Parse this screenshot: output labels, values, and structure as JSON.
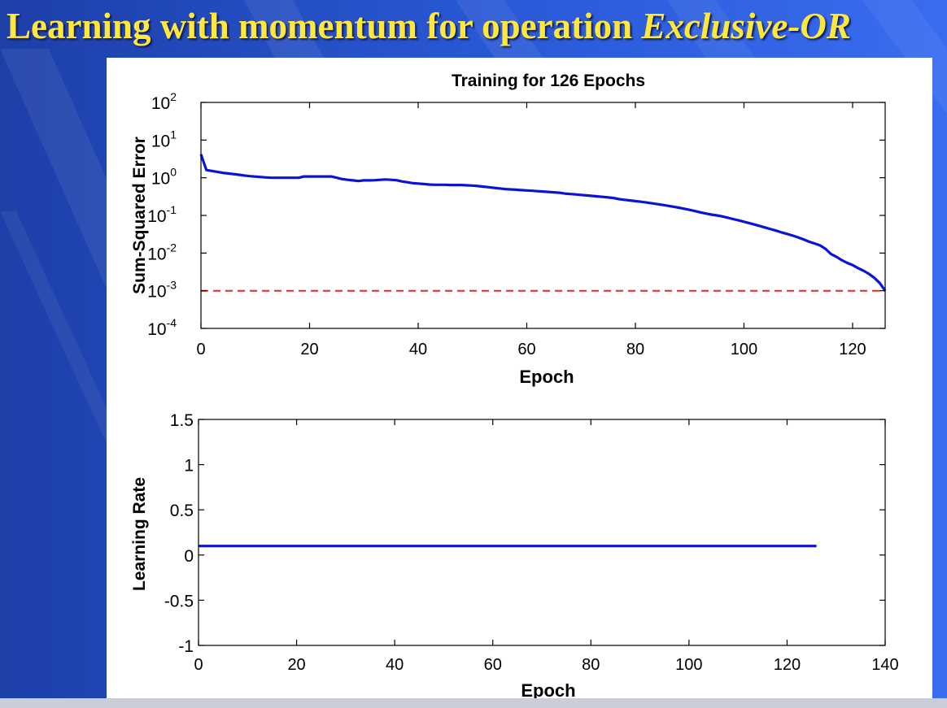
{
  "slide": {
    "title_plain": "Learning with momentum for operation ",
    "title_italic": "Exclusive-OR",
    "colors": {
      "background": "#2a5ad8",
      "title": "#ffe83a"
    }
  },
  "chart_data": [
    {
      "type": "line",
      "title": "Training for 126 Epochs",
      "xlabel": "Epoch",
      "ylabel": "Sum-Squared Error",
      "yscale": "log",
      "xlim": [
        0,
        126
      ],
      "ylim": [
        0.0001,
        100
      ],
      "xticks": [
        0,
        20,
        40,
        60,
        80,
        100,
        120
      ],
      "yticks": [
        {
          "base": "10",
          "exp": "2",
          "value": 100
        },
        {
          "base": "10",
          "exp": "1",
          "value": 10
        },
        {
          "base": "10",
          "exp": "0",
          "value": 1
        },
        {
          "base": "10",
          "exp": "-1",
          "value": 0.1
        },
        {
          "base": "10",
          "exp": "-2",
          "value": 0.01
        },
        {
          "base": "10",
          "exp": "-3",
          "value": 0.001
        },
        {
          "base": "10",
          "exp": "-4",
          "value": 0.0001
        }
      ],
      "grid": false,
      "series": [
        {
          "color": "#0a14d6",
          "style": "solid",
          "x": [
            0,
            1,
            4,
            5,
            7,
            8,
            9,
            12,
            13,
            18,
            19,
            24,
            25,
            26,
            27,
            28,
            29,
            30,
            31,
            32,
            33,
            34,
            35,
            36,
            37,
            38,
            39,
            40,
            41,
            42,
            43,
            44,
            45,
            46,
            47,
            48,
            49,
            50,
            51,
            52,
            53,
            54,
            55,
            56,
            57,
            58,
            59,
            60,
            61,
            62,
            63,
            64,
            65,
            66,
            67,
            68,
            69,
            70,
            71,
            72,
            73,
            74,
            75,
            76,
            77,
            78,
            79,
            80,
            81,
            82,
            83,
            84,
            85,
            86,
            87,
            88,
            89,
            90,
            91,
            92,
            93,
            94,
            95,
            96,
            97,
            98,
            99,
            100,
            101,
            102,
            103,
            104,
            105,
            106,
            107,
            108,
            109,
            110,
            111,
            112,
            113,
            114,
            115,
            116,
            117,
            118,
            119,
            120,
            121,
            122,
            123,
            124,
            125,
            126
          ],
          "y": [
            4.2,
            1.6,
            1.35,
            1.3,
            1.2,
            1.15,
            1.1,
            1.02,
            1.0,
            1.0,
            1.08,
            1.08,
            1.0,
            0.92,
            0.88,
            0.85,
            0.82,
            0.85,
            0.85,
            0.86,
            0.88,
            0.9,
            0.88,
            0.86,
            0.8,
            0.76,
            0.72,
            0.7,
            0.68,
            0.66,
            0.65,
            0.65,
            0.65,
            0.64,
            0.64,
            0.64,
            0.63,
            0.62,
            0.6,
            0.58,
            0.56,
            0.54,
            0.52,
            0.5,
            0.49,
            0.48,
            0.47,
            0.46,
            0.45,
            0.44,
            0.43,
            0.42,
            0.41,
            0.4,
            0.38,
            0.37,
            0.36,
            0.35,
            0.34,
            0.33,
            0.32,
            0.31,
            0.3,
            0.29,
            0.27,
            0.26,
            0.25,
            0.24,
            0.23,
            0.22,
            0.21,
            0.2,
            0.19,
            0.18,
            0.17,
            0.16,
            0.15,
            0.14,
            0.13,
            0.12,
            0.112,
            0.105,
            0.1,
            0.094,
            0.087,
            0.08,
            0.074,
            0.068,
            0.062,
            0.057,
            0.052,
            0.047,
            0.043,
            0.039,
            0.035,
            0.032,
            0.029,
            0.026,
            0.023,
            0.02,
            0.018,
            0.016,
            0.013,
            0.0095,
            0.008,
            0.0065,
            0.0055,
            0.0048,
            0.004,
            0.0034,
            0.0028,
            0.0022,
            0.0016,
            0.001
          ]
        },
        {
          "color": "#e8281e",
          "style": "dashed",
          "x": [
            0,
            126
          ],
          "y": [
            0.001,
            0.001
          ]
        }
      ]
    },
    {
      "type": "line",
      "title": "",
      "xlabel": "Epoch",
      "ylabel": "Learning Rate",
      "xlim": [
        0,
        140
      ],
      "ylim": [
        -1,
        1.5
      ],
      "xticks": [
        "0",
        "20",
        "40",
        "60",
        "80",
        "100",
        "120",
        "140"
      ],
      "yticks": [
        "1.5",
        "1",
        "0.5",
        "0",
        "-0.5",
        "-1"
      ],
      "grid": false,
      "series": [
        {
          "color": "#0a14d6",
          "style": "solid",
          "x": [
            0,
            126
          ],
          "y": [
            0.1,
            0.1
          ]
        }
      ]
    }
  ]
}
